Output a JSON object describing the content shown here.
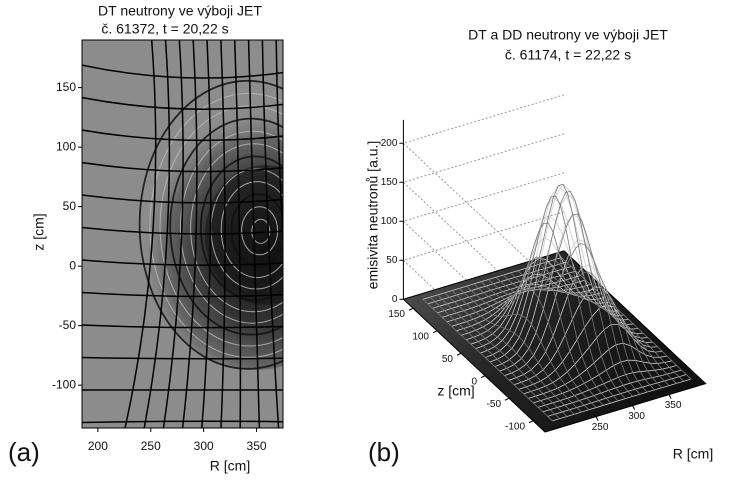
{
  "chart_data": [
    {
      "type": "heatmap",
      "title": [
        "DT neutrony  ve  výboji  JET",
        "č. 61372, t = 20,22 s"
      ],
      "xlabel": "R [cm]",
      "ylabel": "z [cm]",
      "xlim": [
        185,
        375
      ],
      "ylim": [
        -136,
        190
      ],
      "xticks": [
        200,
        250,
        300,
        350
      ],
      "yticks": [
        -100,
        -50,
        0,
        50,
        100,
        150
      ],
      "panel_label": "(a)"
    },
    {
      "type": "surface",
      "title": [
        "DT a DD neutrony  ve  výboji  JET",
        "č. 61174, t = 22,22 s"
      ],
      "xlabel": "R [cm]",
      "ylabel": "z [cm]",
      "zlabel": "emisivita neutronů [a.u.]",
      "xlim": [
        180,
        400
      ],
      "ylim": [
        -125,
        170
      ],
      "zlim": [
        0,
        230
      ],
      "xticks": [
        250,
        300,
        350
      ],
      "yticks": [
        -100,
        -50,
        0,
        50,
        100,
        150
      ],
      "zticks": [
        0,
        50,
        100,
        150,
        200
      ],
      "panel_label": "(b)"
    }
  ]
}
